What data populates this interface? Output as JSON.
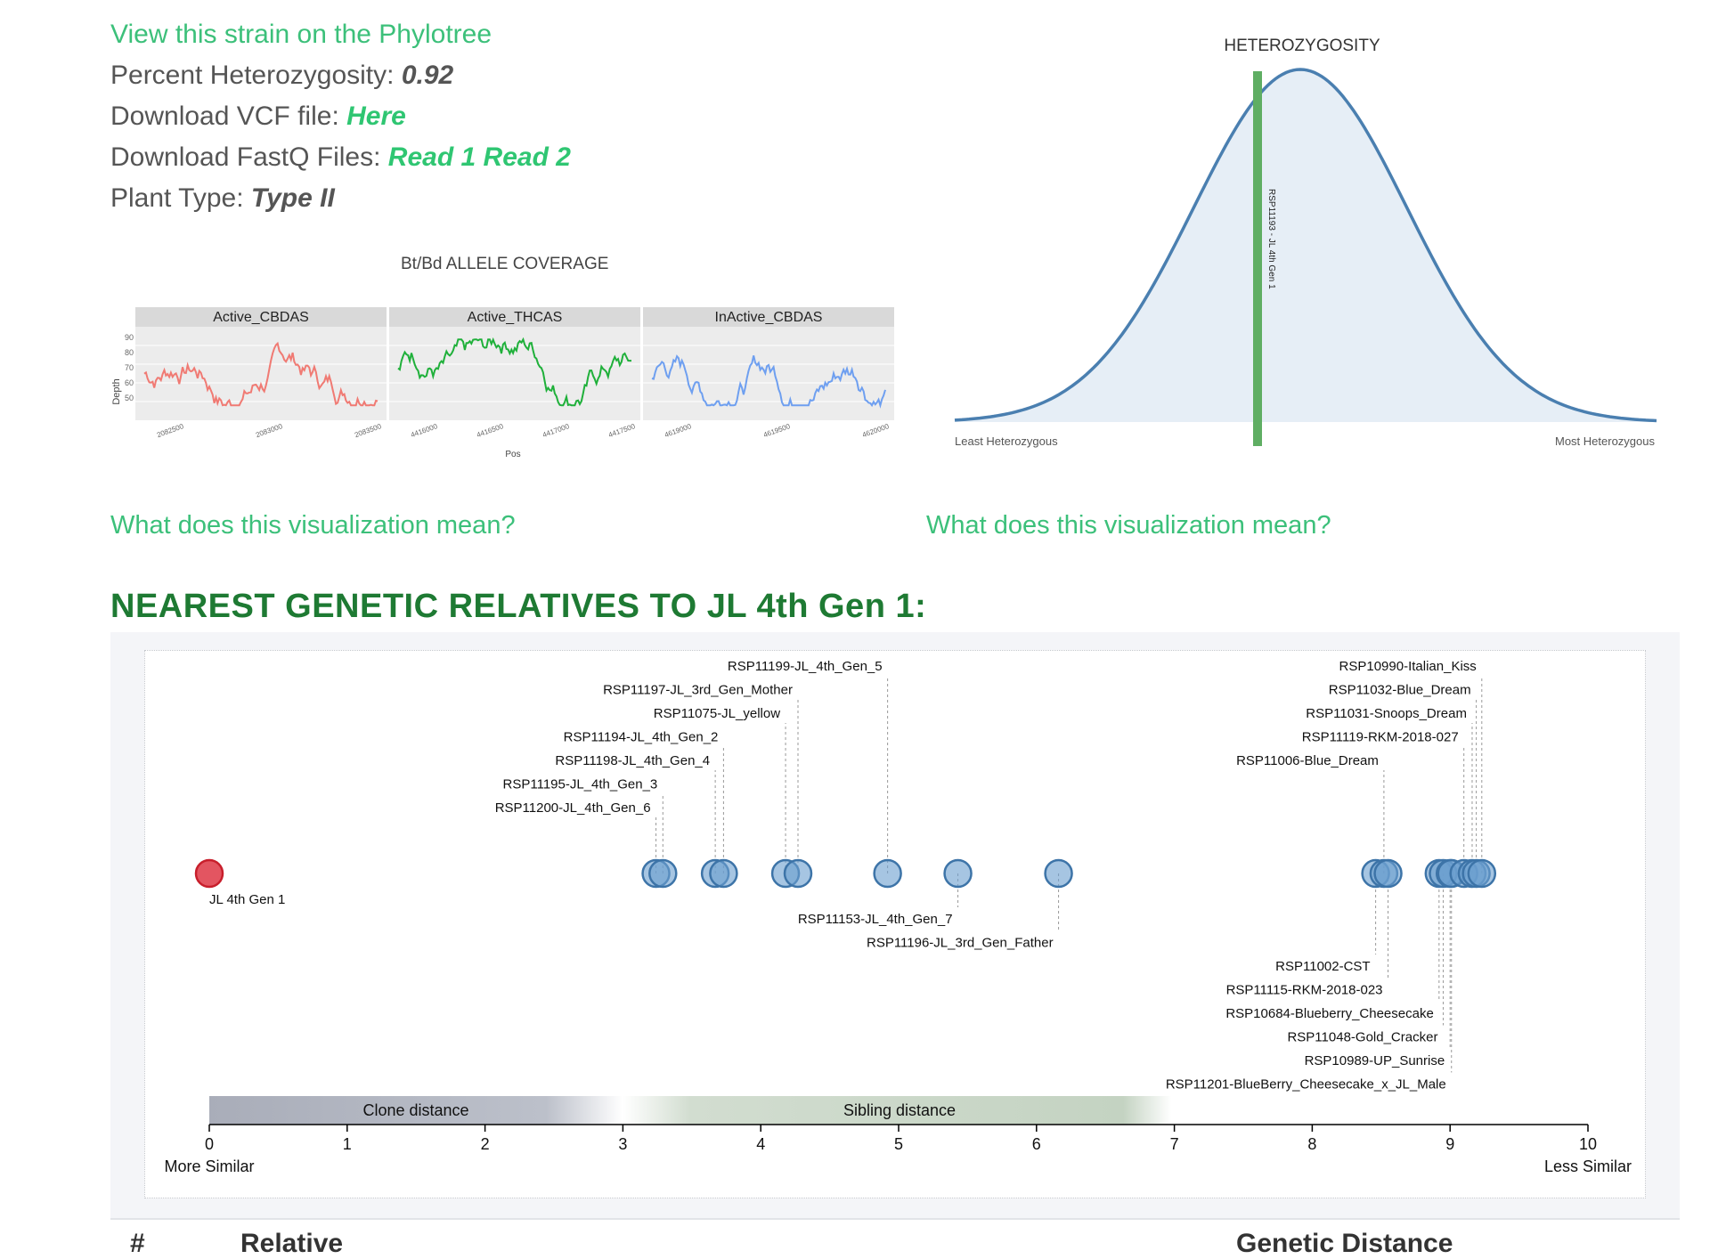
{
  "info": {
    "phylotree_link": "View this strain on the Phylotree",
    "heterozygosity_label": "Percent Heterozygosity:",
    "heterozygosity_value": "0.92",
    "vcf_label": "Download VCF file:",
    "vcf_link": "Here",
    "fastq_label": "Download FastQ Files:",
    "fastq_read1": "Read 1",
    "fastq_read2": "Read 2",
    "plant_type_label": "Plant Type:",
    "plant_type_value": "Type II"
  },
  "coverage": {
    "title": "Bt/Bd ALLELE COVERAGE",
    "ylabel": "Depth",
    "xlabel": "Pos",
    "y_ticks": [
      "90",
      "80",
      "70",
      "60",
      "50"
    ],
    "panels": [
      {
        "name": "Active_CBDAS",
        "color": "#f07a73",
        "ticks": [
          "2082500",
          "2083000",
          "2083500"
        ]
      },
      {
        "name": "Active_THCAS",
        "color": "#1fb03a",
        "ticks": [
          "4416000",
          "4416500",
          "4417000",
          "4417500"
        ]
      },
      {
        "name": "InActive_CBDAS",
        "color": "#6e9ff0",
        "ticks": [
          "4619000",
          "4619500",
          "4620000"
        ]
      }
    ]
  },
  "heterozygosity_chart": {
    "title": "HETEROZYGOSITY",
    "left_label": "Least Heterozygous",
    "right_label": "Most Heterozygous",
    "marker_label": "RSP11193 - JL 4th Gen 1",
    "marker_color": "#5fae63",
    "curve_color": "#4a7fb0"
  },
  "vis_link_left": "What does this visualization mean?",
  "vis_link_right": "What does this visualization mean?",
  "relatives_heading": "NEAREST GENETIC RELATIVES TO JL 4th Gen 1:",
  "chart_data": {
    "type": "scatter",
    "x_min": 0,
    "x_max": 10,
    "x_ticks": [
      "0",
      "1",
      "2",
      "3",
      "4",
      "5",
      "6",
      "7",
      "8",
      "9",
      "10"
    ],
    "left_axis_label": "More Similar",
    "right_axis_label": "Less Similar",
    "band_clone": "Clone distance",
    "band_sibling": "Sibling distance",
    "reference": {
      "label": "JL 4th Gen 1",
      "x": 0,
      "color": "#e04a55"
    },
    "relatives": [
      {
        "label": "RSP11200-JL_4th_Gen_6",
        "x": 3.24,
        "pos": "above",
        "row": 7
      },
      {
        "label": "RSP11195-JL_4th_Gen_3",
        "x": 3.29,
        "pos": "above",
        "row": 6
      },
      {
        "label": "RSP11198-JL_4th_Gen_4",
        "x": 3.67,
        "pos": "above",
        "row": 5
      },
      {
        "label": "RSP11194-JL_4th_Gen_2",
        "x": 3.73,
        "pos": "above",
        "row": 4
      },
      {
        "label": "RSP11075-JL_yellow",
        "x": 4.18,
        "pos": "above",
        "row": 3
      },
      {
        "label": "RSP11197-JL_3rd_Gen_Mother",
        "x": 4.27,
        "pos": "above",
        "row": 2
      },
      {
        "label": "RSP11199-JL_4th_Gen_5",
        "x": 4.92,
        "pos": "above",
        "row": 1
      },
      {
        "label": "RSP11153-JL_4th_Gen_7",
        "x": 5.43,
        "pos": "below",
        "row": 1
      },
      {
        "label": "RSP11196-JL_3rd_Gen_Father",
        "x": 6.16,
        "pos": "below",
        "row": 2
      },
      {
        "label": "RSP11002-CST",
        "x": 8.46,
        "pos": "below",
        "row": 3
      },
      {
        "label": "RSP11006-Blue_Dream",
        "x": 8.52,
        "pos": "above",
        "row": 5
      },
      {
        "label": "RSP11115-RKM-2018-023",
        "x": 8.55,
        "pos": "below",
        "row": 4
      },
      {
        "label": "RSP10684-Blueberry_Cheesecake",
        "x": 8.92,
        "pos": "below",
        "row": 5
      },
      {
        "label": "RSP11048-Gold_Cracker",
        "x": 8.95,
        "pos": "below",
        "row": 6
      },
      {
        "label": "RSP10989-UP_Sunrise",
        "x": 9.0,
        "pos": "below",
        "row": 7
      },
      {
        "label": "RSP11201-BlueBerry_Cheesecake_x_JL_Male",
        "x": 9.01,
        "pos": "below",
        "row": 8
      },
      {
        "label": "RSP11119-RKM-2018-027",
        "x": 9.1,
        "pos": "above",
        "row": 4
      },
      {
        "label": "RSP11031-Snoops_Dream",
        "x": 9.16,
        "pos": "above",
        "row": 3
      },
      {
        "label": "RSP11032-Blue_Dream",
        "x": 9.19,
        "pos": "above",
        "row": 2
      },
      {
        "label": "RSP10990-Italian_Kiss",
        "x": 9.23,
        "pos": "above",
        "row": 1
      }
    ]
  },
  "table_headers": {
    "index": "#",
    "relative": "Relative",
    "distance": "Genetic Distance"
  }
}
